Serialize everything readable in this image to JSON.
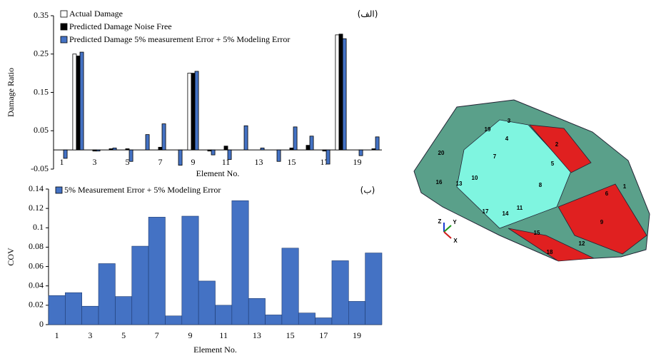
{
  "chart_data": [
    {
      "type": "bar",
      "annotation": "(الف)",
      "y_label": "Damage Ratio",
      "x_label": "Element No.",
      "categories": [
        "1",
        null,
        "3",
        null,
        "5",
        null,
        "7",
        null,
        "9",
        null,
        "11",
        null,
        "13",
        null,
        "15",
        null,
        "17",
        null,
        "19",
        null
      ],
      "ylim": [
        -0.05,
        0.35
      ],
      "yticks": [
        -0.05,
        0.05,
        0.15,
        0.25,
        0.35
      ],
      "series": [
        {
          "name": "Actual Damage",
          "color": "#ffffff",
          "values": [
            0,
            0.25,
            0,
            0,
            0,
            0,
            0,
            0,
            0.2,
            0,
            0,
            0,
            0,
            0,
            0,
            0,
            0,
            0.3,
            0,
            0
          ]
        },
        {
          "name": "Predicted Damage Noise Free",
          "color": "#000000",
          "values": [
            0,
            0.245,
            -0.003,
            0.003,
            0.003,
            0,
            0.007,
            0,
            0.2,
            -0.003,
            0.01,
            0,
            0,
            0,
            0.005,
            0.012,
            -0.003,
            0.302,
            0,
            0.003
          ]
        },
        {
          "name": "Predicted Damage 5% measurement Error + 5% Modeling Error",
          "color": "#4472c4",
          "values": [
            -0.022,
            0.255,
            -0.003,
            0.005,
            -0.03,
            0.04,
            0.068,
            -0.04,
            0.205,
            -0.013,
            -0.025,
            0.063,
            0.005,
            -0.03,
            0.06,
            0.036,
            -0.037,
            0.29,
            -0.015,
            0.034
          ]
        }
      ]
    },
    {
      "type": "bar",
      "annotation": "(ب)",
      "y_label": "COV",
      "x_label": "Element No.",
      "categories": [
        "1",
        null,
        "3",
        null,
        "5",
        null,
        "7",
        null,
        "9",
        null,
        "11",
        null,
        "13",
        null,
        "15",
        null,
        "17",
        null,
        "19",
        null
      ],
      "ylim": [
        0,
        0.14
      ],
      "yticks": [
        0,
        0.02,
        0.04,
        0.06,
        0.08,
        0.1,
        0.12,
        0.14
      ],
      "series": [
        {
          "name": "5% Measurement Error + 5% Modeling Error",
          "color": "#4472c4",
          "values": [
            0.03,
            0.033,
            0.019,
            0.063,
            0.029,
            0.081,
            0.111,
            0.009,
            0.112,
            0.045,
            0.02,
            0.128,
            0.027,
            0.01,
            0.079,
            0.012,
            0.007,
            0.066,
            0.024,
            0.074
          ]
        }
      ]
    }
  ],
  "diagram": {
    "labels": [
      "1",
      "2",
      "3",
      "4",
      "5",
      "6",
      "7",
      "8",
      "9",
      "10",
      "11",
      "12",
      "13",
      "14",
      "15",
      "16",
      "17",
      "18",
      "19",
      "20"
    ],
    "axes": [
      "Z",
      "Y",
      "X"
    ]
  }
}
